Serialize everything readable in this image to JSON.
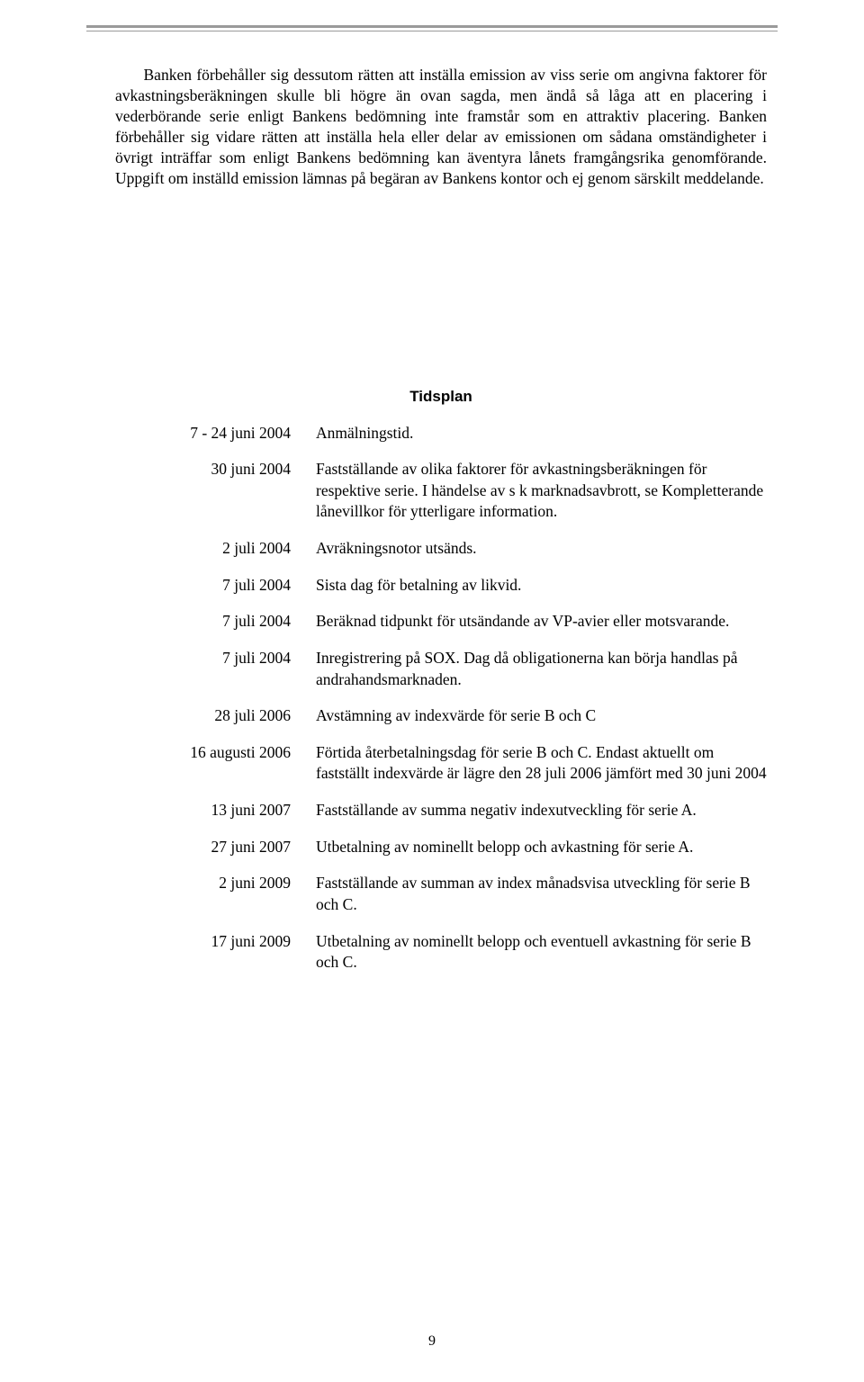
{
  "paragraph": "Banken förbehåller sig dessutom rätten att inställa emission av viss serie om angivna faktorer för avkastningsberäkningen skulle bli högre än ovan sagda, men ändå så låga att en placering i vederbörande serie enligt Bankens bedömning inte framstår som en attraktiv placering. Banken förbehåller sig vidare rätten att inställa hela eller delar av emissionen om sådana omständigheter i övrigt inträffar som enligt Bankens bedömning kan äventyra lånets framgångsrika genomförande. Uppgift om inställd emission lämnas på begäran av Bankens kontor och ej genom särskilt meddelande.",
  "heading": "Tidsplan",
  "schedule": [
    {
      "date": "7 - 24 juni  2004",
      "desc": "Anmälningstid."
    },
    {
      "date": "30 juni  2004",
      "desc": "Fastställande av olika faktorer för avkastningsberäkningen för respektive serie. I händelse av s k marknadsavbrott, se Kompletterande lånevillkor för ytterligare information."
    },
    {
      "date": "2 juli  2004",
      "desc": "Avräkningsnotor utsänds."
    },
    {
      "date": "7 juli  2004",
      "desc": "Sista dag för betalning av likvid."
    },
    {
      "date": "7 juli  2004",
      "desc": "Beräknad tidpunkt för utsändande av VP-avier eller motsvarande."
    },
    {
      "date": "7 juli  2004",
      "desc": "Inregistrering på SOX. Dag då obligationerna kan börja handlas på andrahandsmarknaden."
    },
    {
      "date": "28 juli  2006",
      "desc": "Avstämning av indexvärde för serie B och C"
    },
    {
      "date": "16 augusti 2006",
      "desc": "Förtida återbetalningsdag för serie B och C. Endast aktuellt om fastställt indexvärde är lägre den 28 juli 2006 jämfört med 30 juni 2004"
    },
    {
      "date": "13 juni 2007",
      "desc": "Fastställande av summa negativ indexutveckling för serie A."
    },
    {
      "date": "27 juni  2007",
      "desc": "Utbetalning av nominellt belopp och avkastning för serie A."
    },
    {
      "date": "2 juni  2009",
      "desc": "Fastställande av summan av index månadsvisa utveckling för serie B och C."
    },
    {
      "date": "17 juni  2009",
      "desc": "Utbetalning av nominellt belopp och eventuell avkastning för serie B och C."
    }
  ],
  "pageNumber": "9"
}
